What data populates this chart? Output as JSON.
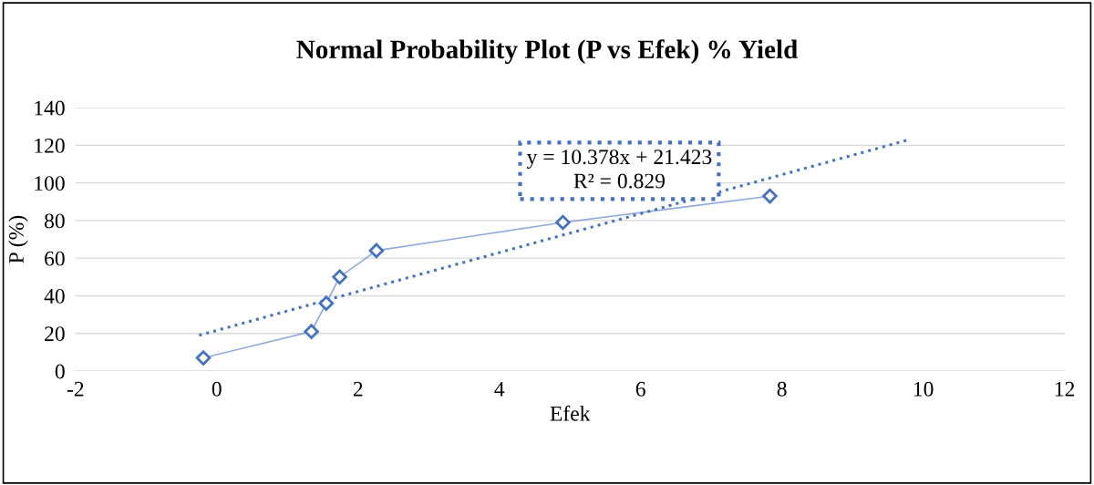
{
  "chart_data": {
    "type": "line",
    "title": "Normal Probability Plot (P vs Efek) % Yield",
    "xlabel": "Efek",
    "ylabel": "P (%)",
    "series": [
      {
        "color": "#4472c4",
        "x": [
          -0.19,
          1.34,
          1.55,
          1.74,
          2.26,
          4.9,
          7.83
        ],
        "values": [
          7,
          21,
          36,
          50,
          64,
          79,
          93
        ],
        "marker": "diamond",
        "line_style": "solid"
      },
      {
        "color": "#4472c4",
        "x": [
          -0.25,
          9.8
        ],
        "values": [
          19,
          123
        ],
        "marker": "none",
        "line_style": "dotted"
      }
    ],
    "annotations": [
      "y = 10.378x + 21.423\nR² = 0.829"
    ],
    "xlim": [
      -2,
      12
    ],
    "xticks": [
      -2,
      0,
      2,
      4,
      6,
      8,
      10,
      12
    ],
    "ylim": [
      0,
      140
    ],
    "yticks": [
      0,
      20,
      40,
      60,
      80,
      100,
      120,
      140
    ],
    "grid": "y",
    "legend": false
  }
}
